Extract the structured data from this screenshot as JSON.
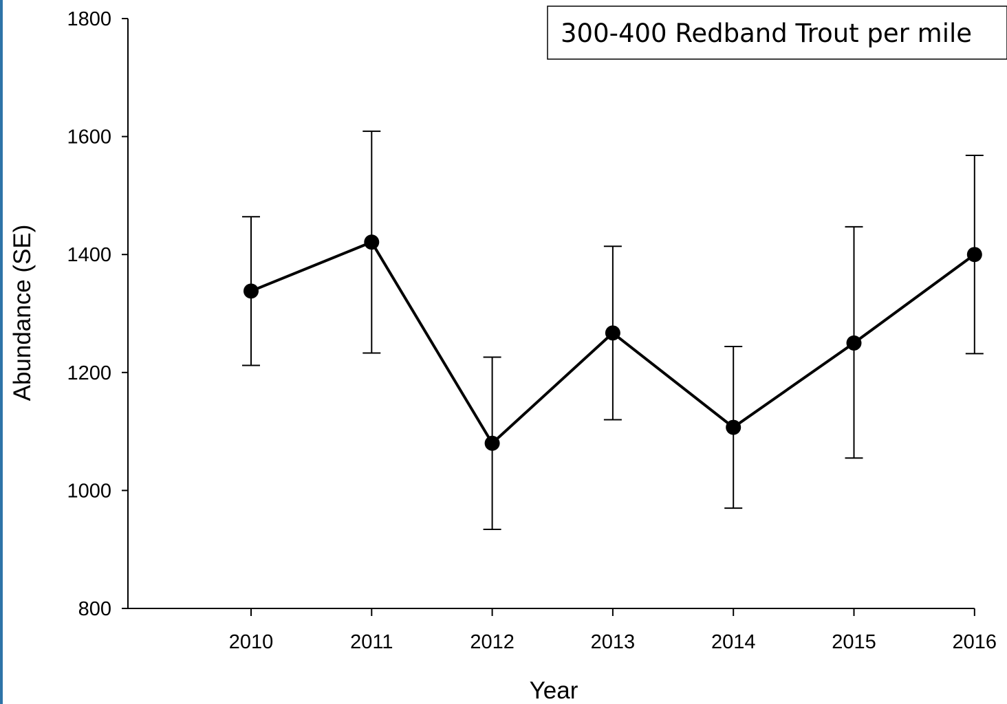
{
  "chart_data": {
    "type": "line",
    "title": "",
    "xlabel": "Year",
    "ylabel": "Abundance (SE)",
    "legend": "300-400 Redband Trout per mile",
    "legend_position": "top-right",
    "ylim": [
      800,
      1800
    ],
    "yticks": [
      800,
      1000,
      1200,
      1400,
      1600,
      1800
    ],
    "categories": [
      "2010",
      "2011",
      "2012",
      "2013",
      "2014",
      "2015",
      "2016"
    ],
    "values": [
      1338,
      1421,
      1080,
      1267,
      1107,
      1250,
      1400
    ],
    "error_lower": [
      1212,
      1233,
      934,
      1120,
      970,
      1055,
      1232
    ],
    "error_upper": [
      1464,
      1609,
      1226,
      1414,
      1244,
      1447,
      1568
    ],
    "grid": false,
    "colors": {
      "line": "#000000",
      "marker": "#000000",
      "accent": "#2e74a8"
    }
  }
}
